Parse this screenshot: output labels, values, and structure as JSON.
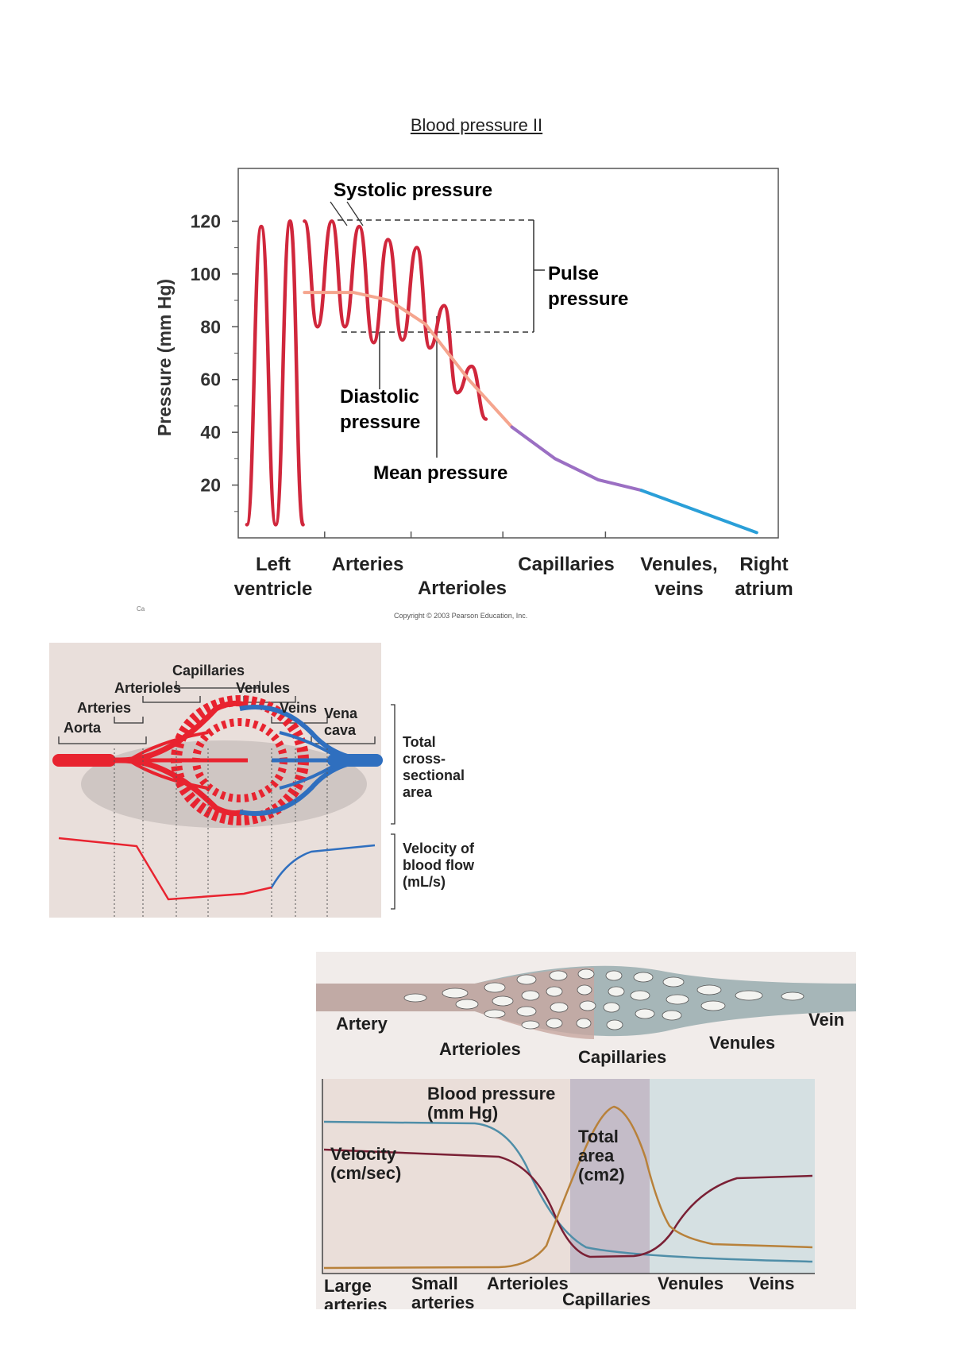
{
  "document": {
    "title": "Blood pressure II",
    "copyright": "Copyright © 2003 Pearson Education, Inc.",
    "stub_text": "Ca"
  },
  "chart_data": [
    {
      "type": "line",
      "ylabel": "Pressure (mm Hg)",
      "yticks": [
        "120",
        "100",
        "80",
        "60",
        "40",
        "20"
      ],
      "ylim": [
        0,
        140
      ],
      "categories": [
        [
          "Left",
          "ventricle"
        ],
        [
          "Arteries"
        ],
        [
          "Arterioles"
        ],
        [
          "Capillaries"
        ],
        [
          "Venules,",
          "veins"
        ],
        [
          "Right",
          "atrium"
        ]
      ],
      "annotations": {
        "systolic": "Systolic pressure",
        "pulse": [
          "Pulse",
          "pressure"
        ],
        "diastolic": [
          "Diastolic",
          "pressure"
        ],
        "mean": "Mean pressure"
      },
      "series": [
        {
          "values": [
            [
              0.06,
              5
            ],
            [
              0.16,
              118
            ],
            [
              0.26,
              5
            ],
            [
              0.36,
              120
            ],
            [
              0.45,
              5
            ]
          ]
        },
        {
          "values": [
            [
              0.46,
              120
            ],
            [
              0.55,
              80
            ],
            [
              0.65,
              120
            ],
            [
              0.74,
              80
            ],
            [
              0.84,
              118
            ],
            [
              0.94,
              74
            ],
            [
              1.04,
              113
            ],
            [
              1.14,
              75
            ],
            [
              1.24,
              110
            ],
            [
              1.33,
              72
            ],
            [
              1.43,
              88
            ],
            [
              1.52,
              55
            ],
            [
              1.62,
              65
            ],
            [
              1.72,
              45
            ]
          ]
        },
        {
          "values": [
            [
              0.46,
              93
            ],
            [
              0.8,
              93
            ],
            [
              1.05,
              90
            ],
            [
              1.3,
              81
            ],
            [
              1.6,
              60
            ],
            [
              1.9,
              42
            ]
          ]
        },
        {
          "values": [
            [
              1.9,
              42
            ],
            [
              2.2,
              30
            ],
            [
              2.5,
              22
            ],
            [
              2.8,
              18
            ]
          ]
        },
        {
          "values": [
            [
              2.8,
              18
            ],
            [
              3.6,
              2
            ]
          ]
        }
      ],
      "colors": {
        "pressure": "#d0273c",
        "mean": "#f5a58e",
        "capillary": "#9b6fc3",
        "vein": "#2a9fd8"
      }
    },
    {
      "type": "diagram",
      "labels": {
        "capillaries": "Capillaries",
        "arterioles": "Arterioles",
        "venules": "Venules",
        "arteries": "Arteries",
        "veins": "Veins",
        "aorta": "Aorta",
        "vena_cava": [
          "Vena",
          "cava"
        ],
        "area": [
          "Total",
          "cross-",
          "sectional",
          "area"
        ],
        "velocity": [
          "Velocity of",
          "blood flow",
          "(mL/s)"
        ]
      },
      "colors": {
        "artery": "#e8232f",
        "vein": "#2f6fbf",
        "panel": "#e9dfdb"
      }
    },
    {
      "type": "line",
      "top_labels": {
        "artery": "Artery",
        "arterioles": "Arterioles",
        "capillaries": "Capillaries",
        "venules": "Venules",
        "vein": "Vein"
      },
      "series": [
        {
          "name": [
            "Blood pressure",
            "(mm Hg)"
          ],
          "color": "#4f8ea8"
        },
        {
          "name": [
            "Velocity",
            "(cm/sec)"
          ],
          "color": "#7a2035"
        },
        {
          "name": [
            "Total",
            "area",
            "(cm2)"
          ],
          "color": "#b8813a"
        }
      ],
      "categories": [
        [
          "Large",
          "arteries"
        ],
        [
          "Small",
          "arteries"
        ],
        [
          "Arterioles"
        ],
        [
          "Capillaries"
        ],
        [
          "Venules"
        ],
        [
          "Veins"
        ]
      ]
    }
  ]
}
